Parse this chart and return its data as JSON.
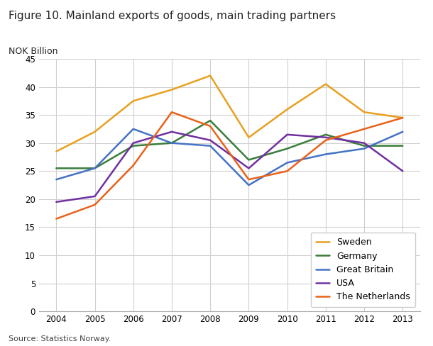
{
  "title": "Figure 10. Mainland exports of goods, main trading partners",
  "ylabel": "NOK Billion",
  "source": "Source: Statistics Norway.",
  "years": [
    2004,
    2005,
    2006,
    2007,
    2008,
    2009,
    2010,
    2011,
    2012,
    2013
  ],
  "series": {
    "Sweden": {
      "values": [
        28.5,
        32.0,
        37.5,
        39.5,
        42.0,
        31.0,
        36.0,
        40.5,
        35.5,
        34.5
      ],
      "color": "#E8A020",
      "linewidth": 1.8
    },
    "Germany": {
      "values": [
        25.5,
        25.5,
        29.5,
        30.0,
        34.0,
        27.0,
        29.0,
        31.5,
        29.5,
        29.5
      ],
      "color": "#3A7D3A",
      "linewidth": 1.8
    },
    "Great Britain": {
      "values": [
        23.5,
        25.5,
        32.5,
        30.0,
        29.5,
        22.5,
        26.5,
        28.0,
        29.0,
        32.0
      ],
      "color": "#4472C4",
      "linewidth": 1.8
    },
    "USA": {
      "values": [
        19.5,
        20.5,
        30.0,
        32.0,
        30.5,
        25.5,
        31.5,
        31.0,
        30.0,
        25.0
      ],
      "color": "#7030A0",
      "linewidth": 1.8
    },
    "The Netherlands": {
      "values": [
        16.5,
        19.0,
        26.0,
        35.5,
        33.0,
        23.5,
        25.0,
        30.5,
        32.5,
        34.5
      ],
      "color": "#E8621A",
      "linewidth": 1.8
    }
  },
  "ylim": [
    0,
    45
  ],
  "yticks": [
    0,
    5,
    10,
    15,
    20,
    25,
    30,
    35,
    40,
    45
  ],
  "background_color": "#ffffff",
  "grid_color": "#d0d0d0",
  "title_fontsize": 11,
  "label_fontsize": 9,
  "tick_fontsize": 8.5,
  "legend_fontsize": 9,
  "figsize": [
    6.1,
    4.88
  ],
  "dpi": 100
}
